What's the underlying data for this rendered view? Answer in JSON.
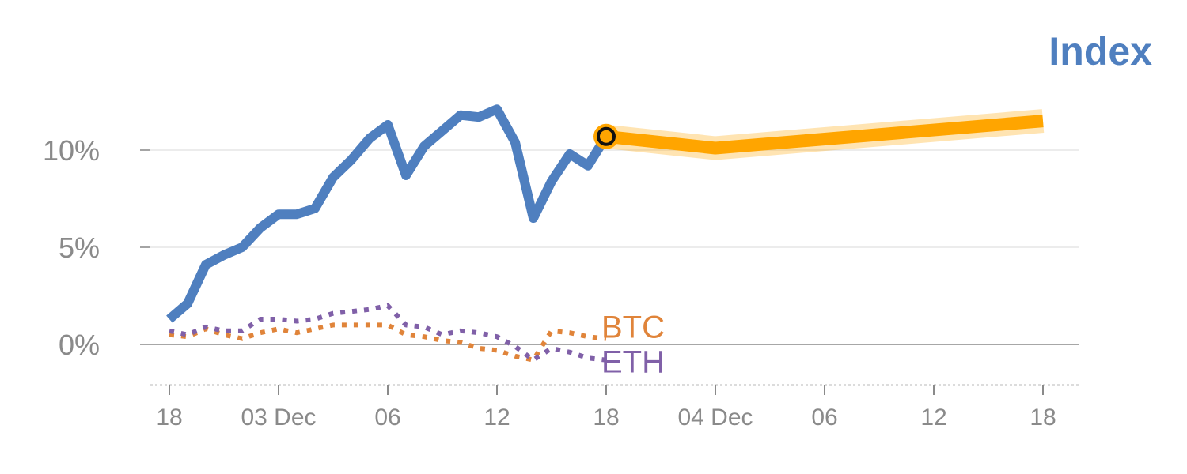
{
  "chart_data": {
    "type": "line",
    "title": "Index",
    "xlabel": "",
    "ylabel": "",
    "ylim": [
      -2,
      13
    ],
    "y_ticks": [
      {
        "value": 0,
        "label": "0%"
      },
      {
        "value": 5,
        "label": "5%"
      },
      {
        "value": 10,
        "label": "10%"
      }
    ],
    "x_ticks": [
      {
        "index": 0,
        "label": "18"
      },
      {
        "index": 6,
        "label": "03 Dec"
      },
      {
        "index": 12,
        "label": "06"
      },
      {
        "index": 18,
        "label": "12"
      },
      {
        "index": 24,
        "label": "18"
      },
      {
        "index": 30,
        "label": "04 Dec"
      },
      {
        "index": 36,
        "label": "06"
      },
      {
        "index": 42,
        "label": "12"
      },
      {
        "index": 48,
        "label": "18"
      }
    ],
    "grid": true,
    "series": [
      {
        "name": "",
        "style": "solid",
        "color": "#4f7fbf",
        "x": [
          0,
          1,
          2,
          3,
          4,
          5,
          6,
          7,
          8,
          9,
          10,
          11,
          12,
          13,
          14,
          15,
          16,
          17,
          18,
          19,
          20,
          21,
          22,
          23,
          24
        ],
        "values": [
          1.3,
          2.1,
          4.1,
          4.6,
          5.0,
          6.0,
          6.7,
          6.7,
          7.0,
          8.6,
          9.5,
          10.6,
          11.3,
          8.7,
          10.2,
          11.0,
          11.8,
          11.7,
          12.1,
          10.4,
          6.5,
          8.4,
          9.8,
          9.2,
          10.7
        ]
      },
      {
        "name": "",
        "style": "forecast",
        "color": "#ffa500",
        "x": [
          24,
          30,
          48
        ],
        "values": [
          10.7,
          10.1,
          11.5
        ]
      },
      {
        "name": "BTC",
        "style": "dotted",
        "color": "#e0843a",
        "x": [
          0,
          1,
          2,
          3,
          4,
          5,
          6,
          7,
          8,
          9,
          10,
          11,
          12,
          13,
          14,
          15,
          16,
          17,
          18,
          19,
          20,
          21,
          22,
          23,
          24
        ],
        "values": [
          0.5,
          0.4,
          0.8,
          0.5,
          0.3,
          0.6,
          0.8,
          0.6,
          0.8,
          1.0,
          1.0,
          1.0,
          1.0,
          0.5,
          0.4,
          0.2,
          0.1,
          -0.2,
          -0.3,
          -0.6,
          -0.8,
          0.7,
          0.6,
          0.4,
          0.3
        ]
      },
      {
        "name": "ETH",
        "style": "dotted",
        "color": "#8060a8",
        "x": [
          0,
          1,
          2,
          3,
          4,
          5,
          6,
          7,
          8,
          9,
          10,
          11,
          12,
          13,
          14,
          15,
          16,
          17,
          18,
          19,
          20,
          21,
          22,
          23,
          24
        ],
        "values": [
          0.7,
          0.5,
          0.9,
          0.7,
          0.7,
          1.3,
          1.3,
          1.2,
          1.3,
          1.6,
          1.7,
          1.8,
          2.0,
          1.0,
          0.9,
          0.5,
          0.7,
          0.6,
          0.4,
          -0.1,
          -0.8,
          -0.2,
          -0.4,
          -0.7,
          -0.8
        ]
      }
    ],
    "marker": {
      "x": 24,
      "value": 10.7
    }
  }
}
